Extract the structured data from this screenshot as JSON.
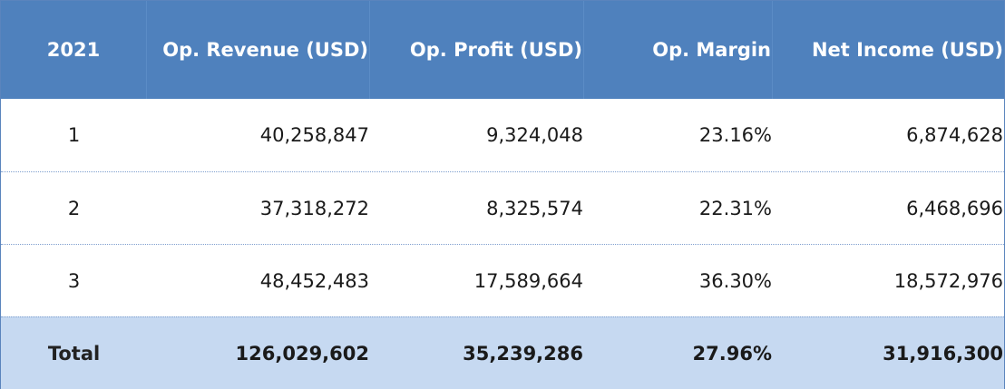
{
  "table": {
    "headers": [
      "2021",
      "Op. Revenue (USD)",
      "Op. Profit (USD)",
      "Op. Margin",
      "Net Income (USD)"
    ],
    "rows": [
      [
        "1",
        "40,258,847",
        "9,324,048",
        "23.16%",
        "6,874,628"
      ],
      [
        "2",
        "37,318,272",
        "8,325,574",
        "22.31%",
        "6,468,696"
      ],
      [
        "3",
        "48,452,483",
        "17,589,664",
        "36.30%",
        "18,572,976"
      ]
    ],
    "total": [
      "Total",
      "126,029,602",
      "35,239,286",
      "27.96%",
      "31,916,300"
    ]
  },
  "colors": {
    "header_bg": "#4f81bd",
    "header_text": "#ffffff",
    "total_bg": "#c6d9f1",
    "row_divider": "#7f9fcf"
  }
}
